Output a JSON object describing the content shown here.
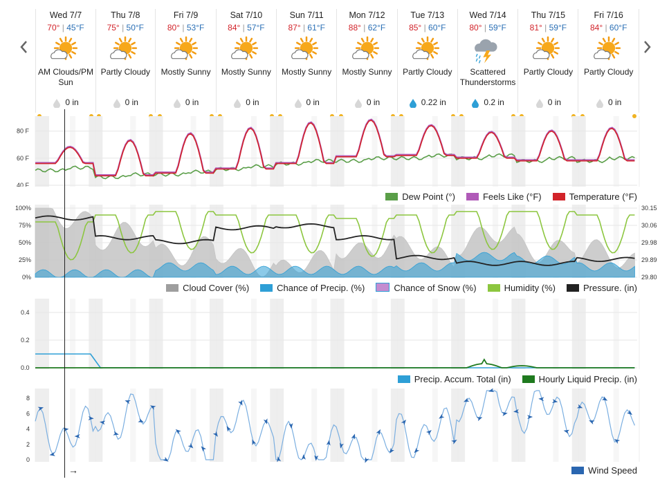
{
  "forecast": {
    "days": [
      {
        "date": "Wed 7/7",
        "hi": "70°",
        "lo": "45°F",
        "cond1": "AM Clouds/PM",
        "cond2": "Sun",
        "icon": "sun-cloud-icon",
        "precip": "0 in",
        "rain": false
      },
      {
        "date": "Thu 7/8",
        "hi": "75°",
        "lo": "50°F",
        "cond1": "Partly Cloudy",
        "cond2": "",
        "icon": "sun-cloud-icon",
        "precip": "0 in",
        "rain": false
      },
      {
        "date": "Fri 7/9",
        "hi": "80°",
        "lo": "53°F",
        "cond1": "Mostly Sunny",
        "cond2": "",
        "icon": "sun-cloud-icon",
        "precip": "0 in",
        "rain": false
      },
      {
        "date": "Sat 7/10",
        "hi": "84°",
        "lo": "57°F",
        "cond1": "Mostly Sunny",
        "cond2": "",
        "icon": "sun-cloud-icon",
        "precip": "0 in",
        "rain": false
      },
      {
        "date": "Sun 7/11",
        "hi": "87°",
        "lo": "61°F",
        "cond1": "Mostly Sunny",
        "cond2": "",
        "icon": "sun-cloud-icon",
        "precip": "0 in",
        "rain": false
      },
      {
        "date": "Mon 7/12",
        "hi": "88°",
        "lo": "62°F",
        "cond1": "Mostly Sunny",
        "cond2": "",
        "icon": "sun-cloud-icon",
        "precip": "0 in",
        "rain": false
      },
      {
        "date": "Tue 7/13",
        "hi": "85°",
        "lo": "60°F",
        "cond1": "Partly Cloudy",
        "cond2": "",
        "icon": "sun-cloud-icon",
        "precip": "0.22 in",
        "rain": true
      },
      {
        "date": "Wed 7/14",
        "hi": "80°",
        "lo": "59°F",
        "cond1": "Scattered",
        "cond2": "Thunderstorms",
        "icon": "thunderstorm-icon",
        "precip": "0.2 in",
        "rain": true
      },
      {
        "date": "Thu 7/15",
        "hi": "81°",
        "lo": "59°F",
        "cond1": "Partly Cloudy",
        "cond2": "",
        "icon": "sun-cloud-icon",
        "precip": "0 in",
        "rain": false
      },
      {
        "date": "Fri 7/16",
        "hi": "84°",
        "lo": "60°F",
        "cond1": "Partly Cloudy",
        "cond2": "",
        "icon": "sun-cloud-icon",
        "precip": "0 in",
        "rain": false
      }
    ],
    "temp_sep": "|"
  },
  "colors": {
    "temperature": "#d2232a",
    "feels_like": "#b05ab8",
    "dew_point": "#5a9e48",
    "cloud_cover": "#9e9e9e",
    "chance_precip": "#2e9fd6",
    "chance_snow": "#c48cd0",
    "humidity": "#8cc63f",
    "pressure": "#222222",
    "precip_total": "#2e9fd6",
    "hourly_liquid": "#1f7a1f",
    "wind": "#2a66b0",
    "night_band": "#eeeeee"
  },
  "cursor": {
    "arrow": "→"
  },
  "chart_data": [
    {
      "type": "line",
      "x": [
        "Wed 7/7",
        "Thu 7/8",
        "Fri 7/9",
        "Sat 7/10",
        "Sun 7/11",
        "Mon 7/12",
        "Tue 7/13",
        "Wed 7/14",
        "Thu 7/15",
        "Fri 7/16"
      ],
      "yticks": [
        "80 F",
        "60 F",
        "40 F"
      ],
      "ylim": [
        40,
        90
      ],
      "series": [
        {
          "name": "Dew Point (°)",
          "values": [
            52,
            47,
            49,
            53,
            57,
            59,
            61,
            61,
            59,
            59
          ]
        },
        {
          "name": "Feels Like (°F)",
          "values": [
            68,
            73,
            78,
            82,
            86,
            88,
            84,
            80,
            80,
            83
          ]
        },
        {
          "name": "Temperature (°F)",
          "values": [
            68,
            73,
            78,
            82,
            86,
            88,
            84,
            79,
            80,
            82
          ]
        }
      ],
      "legend": [
        "Dew Point (°)",
        "Feels Like (°F)",
        "Temperature (°F)"
      ]
    },
    {
      "type": "area",
      "yticks_left": [
        "100%",
        "75%",
        "50%",
        "25%",
        "0%"
      ],
      "yticks_right": [
        "30.15",
        "30.06",
        "29.98",
        "29.89",
        "29.80"
      ],
      "series": [
        {
          "name": "Cloud Cover (%)",
          "values": [
            90,
            55,
            40,
            25,
            15,
            45,
            35,
            55,
            45,
            30
          ]
        },
        {
          "name": "Chance of Precip. (%)",
          "values": [
            5,
            5,
            15,
            10,
            10,
            10,
            15,
            30,
            25,
            15
          ]
        },
        {
          "name": "Chance of Snow (%)",
          "values": [
            0,
            0,
            0,
            0,
            0,
            0,
            0,
            0,
            0,
            0
          ]
        },
        {
          "name": "Humidity (%)",
          "values": [
            80,
            90,
            95,
            90,
            90,
            85,
            90,
            95,
            95,
            90
          ]
        },
        {
          "name": "Pressure. (in)",
          "values": [
            30.1,
            30.0,
            29.98,
            30.05,
            30.06,
            30.0,
            29.9,
            29.87,
            29.87,
            29.89
          ]
        }
      ],
      "legend": [
        "Cloud Cover (%)",
        "Chance of Precip. (%)",
        "Chance of Snow (%)",
        "Humidity (%)",
        "Pressure. (in)"
      ]
    },
    {
      "type": "line",
      "yticks": [
        "0.4",
        "0.2",
        "0.0"
      ],
      "ylim": [
        0,
        0.5
      ],
      "series": [
        {
          "name": "Precip. Accum. Total (in)",
          "values": [
            0.1,
            0,
            0,
            0,
            0,
            0,
            0,
            0,
            0,
            0
          ]
        },
        {
          "name": "Hourly Liquid Precip. (in)",
          "values": [
            0,
            0,
            0,
            0,
            0,
            0,
            0,
            0.06,
            0,
            0
          ]
        }
      ],
      "legend": [
        "Precip. Accum. Total (in)",
        "Hourly Liquid Precip. (in)"
      ]
    },
    {
      "type": "line",
      "yticks": [
        "8",
        "6",
        "4",
        "2",
        "0"
      ],
      "ylim": [
        0,
        9
      ],
      "series": [
        {
          "name": "Wind Speed",
          "values": [
            5,
            7,
            3,
            6,
            3,
            3,
            5,
            9,
            8,
            7
          ]
        }
      ],
      "legend": [
        "Wind Speed"
      ]
    }
  ]
}
